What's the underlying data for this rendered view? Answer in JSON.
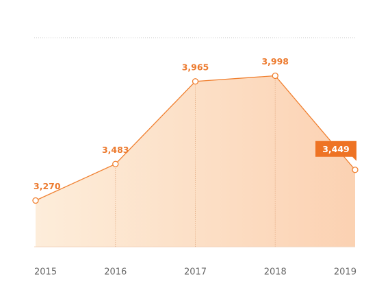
{
  "chart_data": {
    "type": "area",
    "categories": [
      "2015",
      "2016",
      "2017",
      "2018",
      "2019"
    ],
    "values": [
      3270,
      3483,
      3965,
      3998,
      3449
    ],
    "value_labels": [
      "3,270",
      "3,483",
      "3,965",
      "3,998",
      "3,449"
    ],
    "color": "#f07f2e",
    "ylim": [
      3000,
      4220
    ],
    "highlight_last": true
  }
}
